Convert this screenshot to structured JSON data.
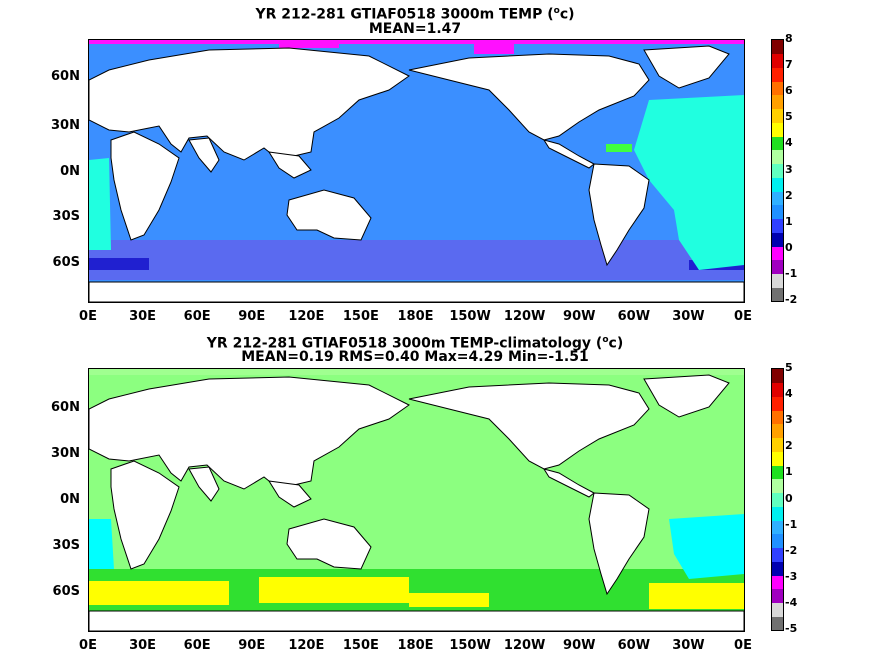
{
  "panels": [
    {
      "title_line1_pre": "YR 212-281 GTIAF0518 3000m TEMP (",
      "title_unit_sup": "o",
      "title_unit_post": "c)",
      "title_line2": "MEAN=1.47",
      "colorbar": {
        "colors": [
          "#707070",
          "#d8d8d8",
          "#a000c0",
          "#ff00ff",
          "#0000b0",
          "#3040ff",
          "#2090ff",
          "#30b0ff",
          "#00f0f0",
          "#60ffc0",
          "#b0ffa0",
          "#20e020",
          "#ffff00",
          "#ffd000",
          "#ffa000",
          "#ff7000",
          "#ff2000",
          "#e00000",
          "#800000"
        ],
        "ticks": [
          "-2",
          "-1",
          "0",
          "1",
          "2",
          "3",
          "4",
          "5",
          "6",
          "7",
          "8"
        ]
      },
      "fields": {
        "ocean": "#3b8fff",
        "south": "#5a6af0",
        "deep_south": "#2020d0",
        "atlantic": "#20ffe0",
        "arctic": "#ff10ff",
        "gulf": "#40ff40"
      }
    },
    {
      "title_line1_pre": "YR 212-281 GTIAF0518 3000m TEMP-climatology (",
      "title_unit_sup": "o",
      "title_unit_post": "c)",
      "title_line2": "MEAN=0.19   RMS=0.40   Max=4.29   Min=-1.51",
      "colorbar": {
        "colors": [
          "#707070",
          "#d8d8d8",
          "#a000c0",
          "#ff00ff",
          "#0000b0",
          "#3040ff",
          "#2090ff",
          "#30b0ff",
          "#00f0f0",
          "#60ffc0",
          "#b0ffa0",
          "#20e020",
          "#ffff00",
          "#ffd000",
          "#ffa000",
          "#ff7000",
          "#ff2000",
          "#e00000",
          "#800000"
        ],
        "ticks": [
          "-5",
          "-4",
          "-3",
          "-2",
          "-1",
          "0",
          "1",
          "2",
          "3",
          "4",
          "5"
        ]
      },
      "fields": {
        "ocean": "#8cff80",
        "south": "#30e030",
        "deep_south": "#ffff00",
        "atlantic": "#00ffff",
        "arctic": "#a0ff90",
        "gulf": "#30e030"
      }
    }
  ],
  "axes": {
    "lat_labels": [
      "60N",
      "30N",
      "0N",
      "30S",
      "60S"
    ],
    "lon_labels": [
      "0E",
      "30E",
      "60E",
      "90E",
      "120E",
      "150E",
      "180E",
      "150W",
      "120W",
      "90W",
      "60W",
      "30W",
      "0E"
    ]
  }
}
